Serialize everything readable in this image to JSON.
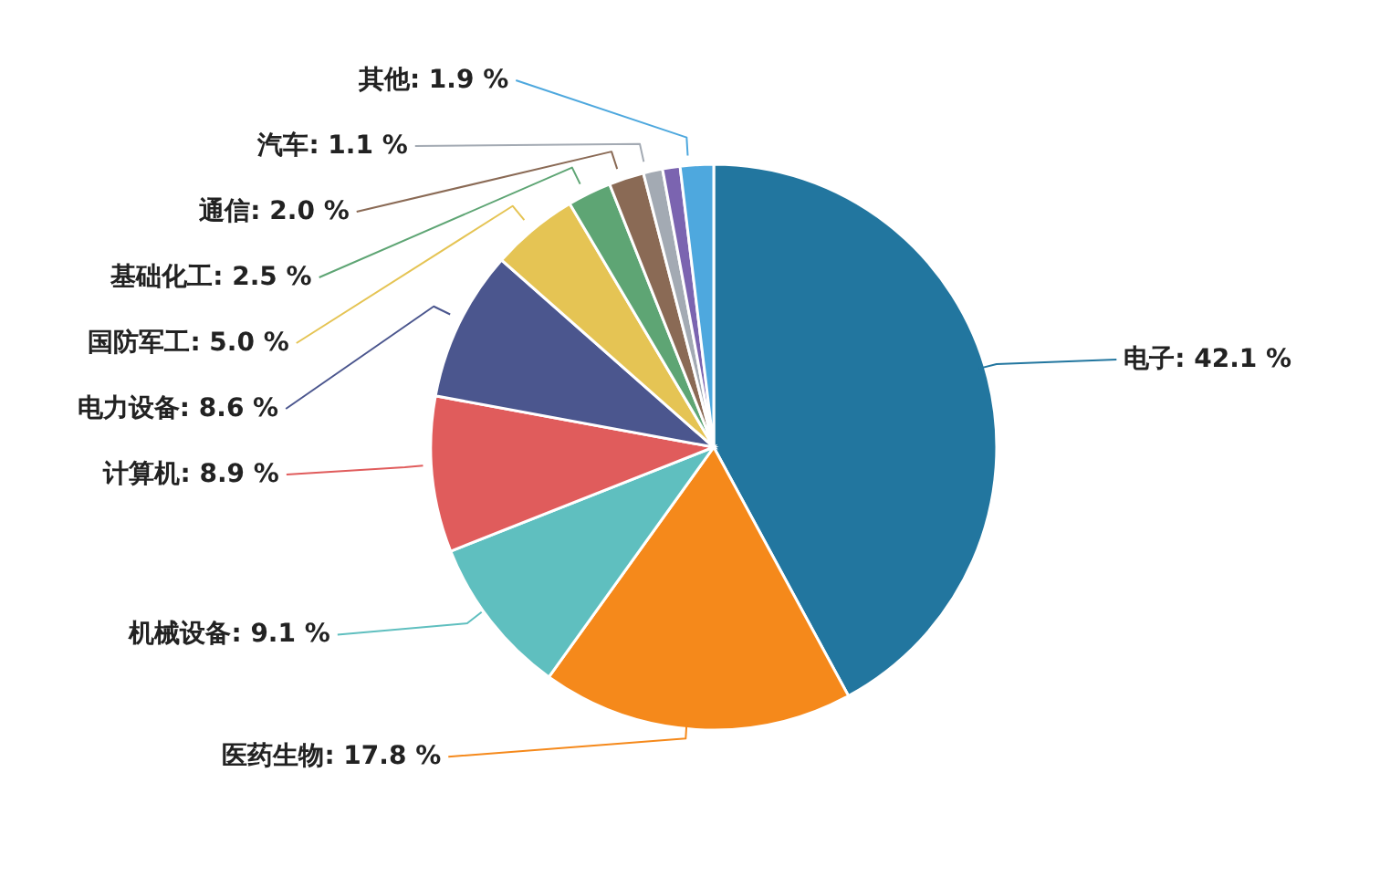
{
  "chart_data": {
    "type": "pie",
    "categories": [
      "电子",
      "医药生物",
      "机械设备",
      "计算机",
      "电力设备",
      "国防军工",
      "基础化工",
      "通信",
      "汽车",
      null,
      "其他"
    ],
    "values": [
      42.1,
      17.8,
      9.1,
      8.9,
      8.6,
      5.0,
      2.5,
      2.0,
      1.1,
      1.0,
      1.9
    ],
    "value_labels": [
      "42.1 %",
      "17.8 %",
      "9.1 %",
      "8.9 %",
      "8.6 %",
      "5.0 %",
      "2.5 %",
      "2.0 %",
      "1.1 %",
      null,
      "1.9 %"
    ],
    "colors": [
      "#22769f",
      "#f5891b",
      "#5fbfbf",
      "#e05c5c",
      "#4b568e",
      "#e5c454",
      "#5ea574",
      "#8a6a55",
      "#a3aab3",
      "#7b64b0",
      "#4ea8de"
    ],
    "legend": false
  }
}
